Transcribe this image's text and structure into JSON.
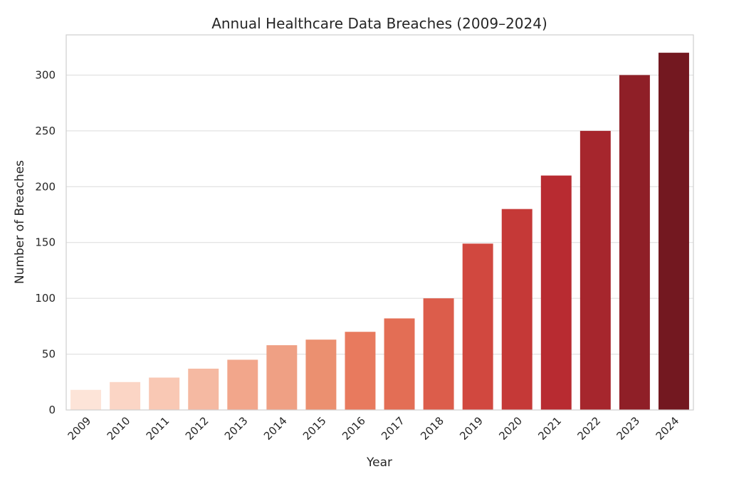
{
  "chart_data": {
    "type": "bar",
    "title": "Annual Healthcare Data Breaches (2009–2024)",
    "xlabel": "Year",
    "ylabel": "Number of Breaches",
    "categories": [
      "2009",
      "2010",
      "2011",
      "2012",
      "2013",
      "2014",
      "2015",
      "2016",
      "2017",
      "2018",
      "2019",
      "2020",
      "2021",
      "2022",
      "2023",
      "2024"
    ],
    "values": [
      18,
      25,
      29,
      37,
      45,
      58,
      63,
      70,
      82,
      100,
      149,
      180,
      210,
      250,
      300,
      320
    ],
    "ylim": [
      0,
      336
    ],
    "yticks": [
      0,
      50,
      100,
      150,
      200,
      250,
      300
    ],
    "grid": true,
    "colors": [
      "#fde4d8",
      "#fbd5c5",
      "#f9c8b4",
      "#f5b9a2",
      "#f2a68b",
      "#efa084",
      "#eb9070",
      "#e87a5e",
      "#e36e55",
      "#dc5d4b",
      "#d1483f",
      "#c53937",
      "#b82b31",
      "#a6262d",
      "#8f1f27",
      "#731820"
    ]
  }
}
